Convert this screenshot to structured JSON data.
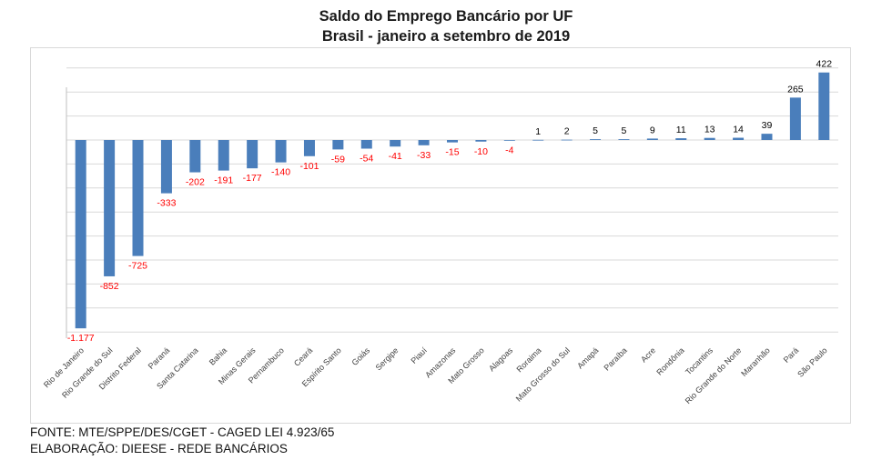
{
  "chart_data": {
    "type": "bar",
    "title": "Saldo do Emprego Bancário por UF",
    "subtitle": "Brasil - janeiro a setembro de 2019",
    "xlabel": "",
    "ylabel": "",
    "ylim": [
      -1200,
      500
    ],
    "grid": true,
    "categories": [
      "Rio de Janeiro",
      "Rio Grande do Sul",
      "Distrito Federal",
      "Paraná",
      "Santa Catarina",
      "Bahia",
      "Minas Gerais",
      "Pernambuco",
      "Ceará",
      "Espírito Santo",
      "Goiás",
      "Sergipe",
      "Piauí",
      "Amazonas",
      "Mato Grosso",
      "Alagoas",
      "Roraima",
      "Mato Grosso do Sul",
      "Amapá",
      "Paraíba",
      "Acre",
      "Rondônia",
      "Tocantins",
      "Rio Grande do Norte",
      "Maranhão",
      "Pará",
      "São Paulo"
    ],
    "values": [
      -1177,
      -852,
      -725,
      -333,
      -202,
      -191,
      -177,
      -140,
      -101,
      -59,
      -54,
      -41,
      -33,
      -15,
      -10,
      -4,
      1,
      2,
      5,
      5,
      9,
      11,
      13,
      14,
      39,
      265,
      422
    ],
    "data_labels": [
      "-1.177",
      "-852",
      "-725",
      "-333",
      "-202",
      "-191",
      "-177",
      "-140",
      "-101",
      "-59",
      "-54",
      "-41",
      "-33",
      "-15",
      "-10",
      "-4",
      "1",
      "2",
      "5",
      "5",
      "9",
      "11",
      "13",
      "14",
      "39",
      "265",
      "422"
    ],
    "bar_color": "#4a7ebb",
    "negative_label_color": "#ff0000",
    "positive_label_color": "#000000"
  },
  "footer": {
    "source": "FONTE: MTE/SPPE/DES/CGET - CAGED LEI 4.923/65",
    "elaboration": "ELABORAÇÃO: DIEESE - REDE BANCÁRIOS"
  }
}
